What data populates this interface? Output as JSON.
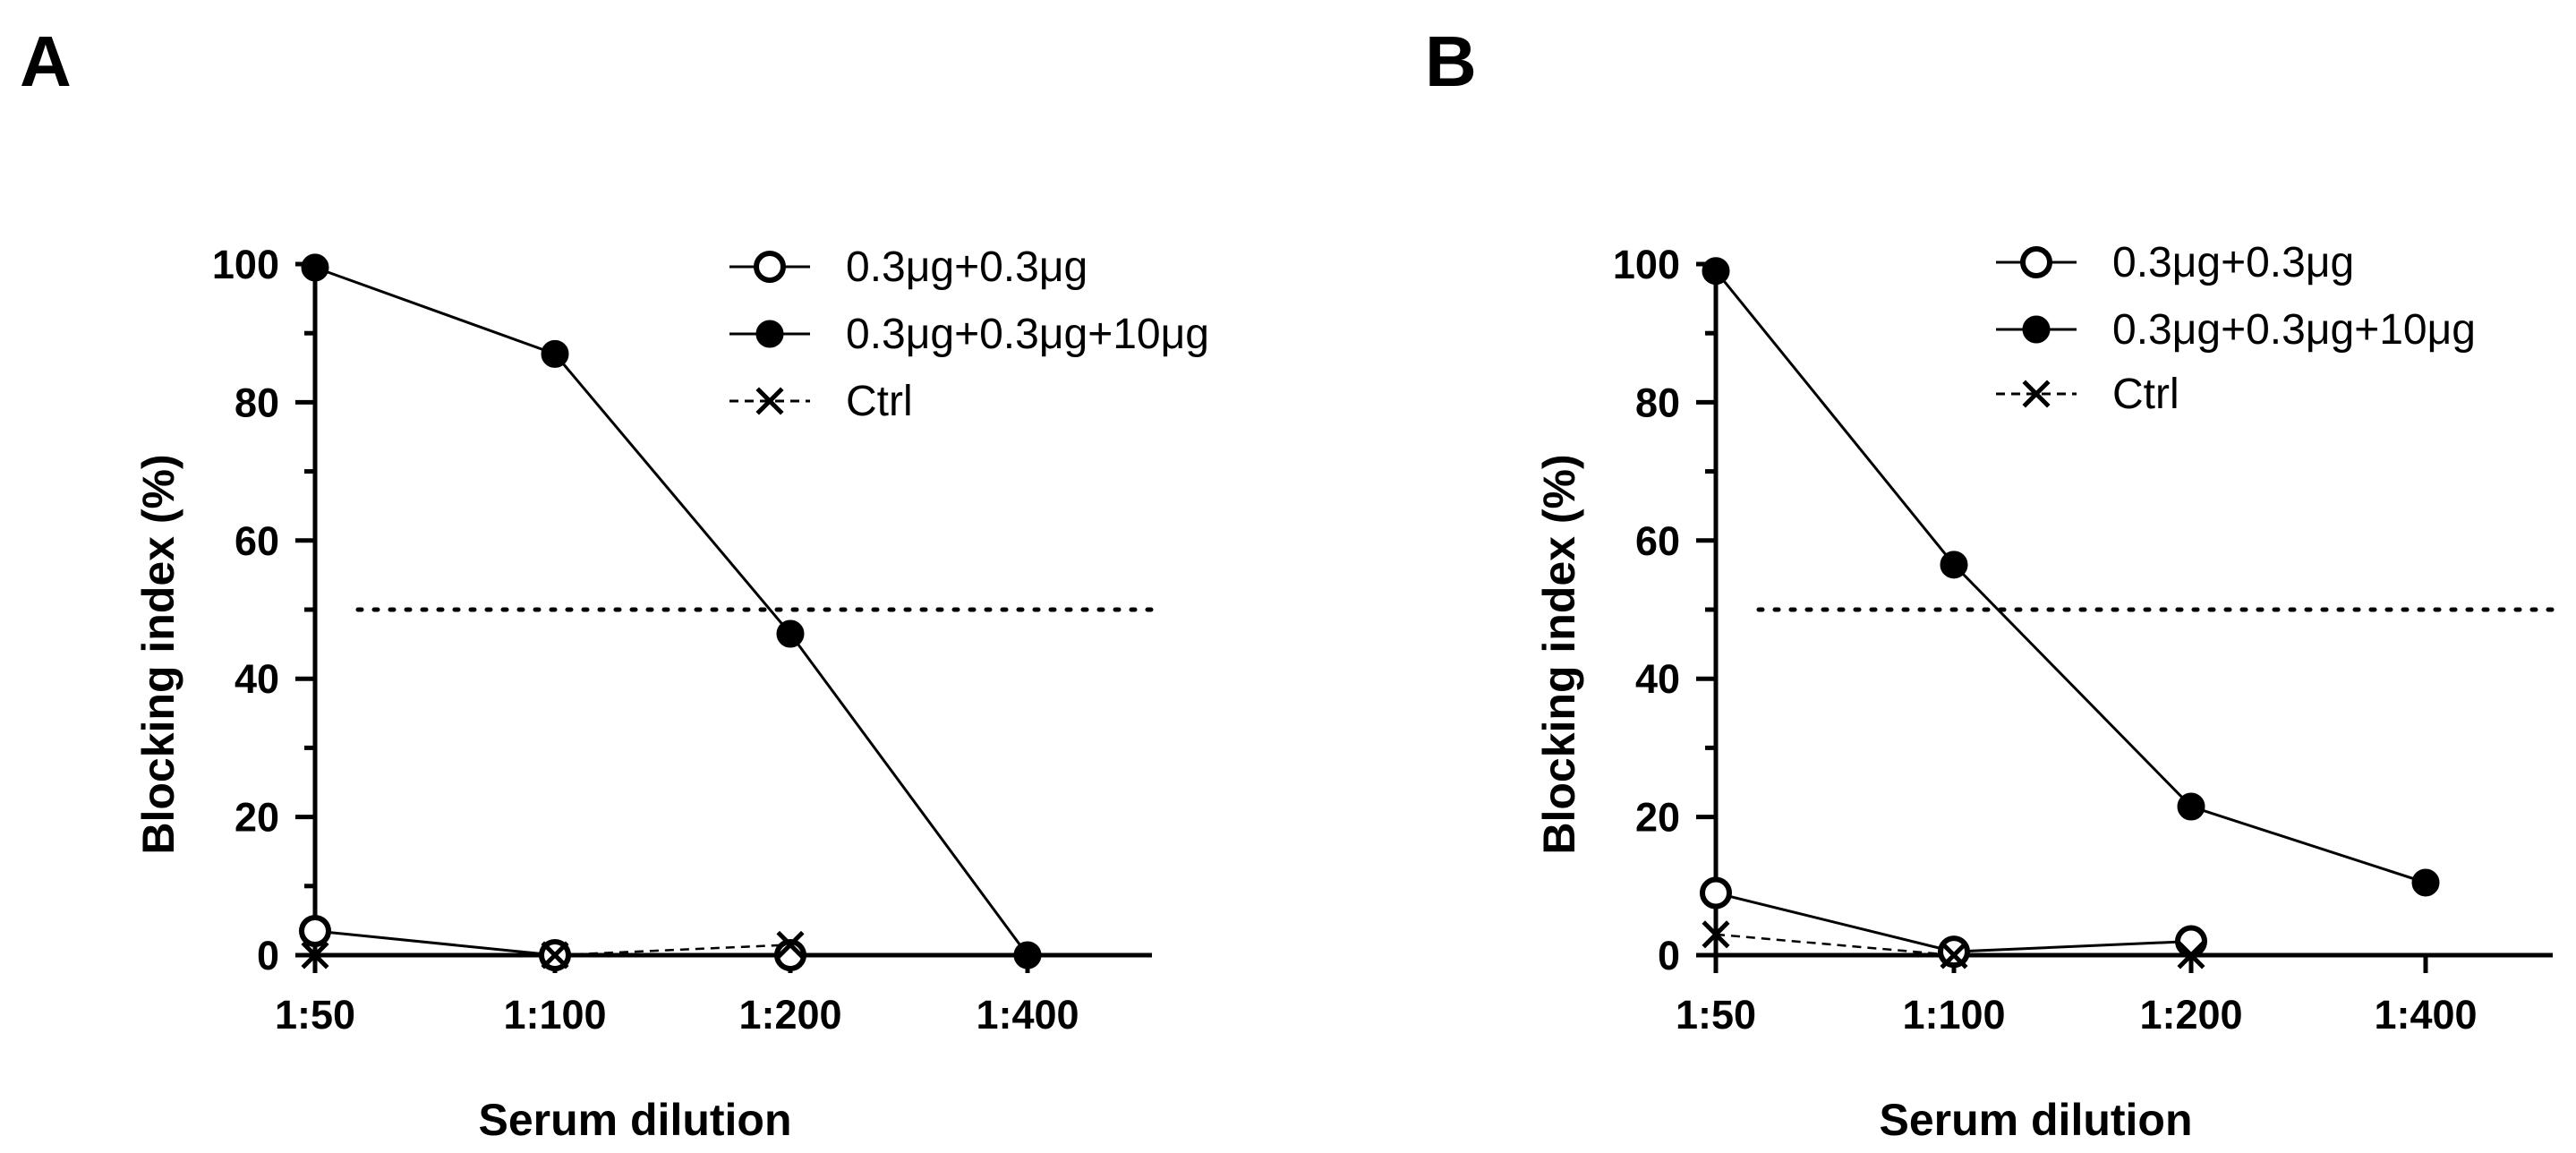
{
  "chart_data": [
    {
      "panel": "A",
      "type": "line",
      "xlabel": "Serum dilution",
      "ylabel": "Blocking index (%)",
      "categories": [
        "1:50",
        "1:100",
        "1:200",
        "1:400"
      ],
      "ylim": [
        0,
        100
      ],
      "yticks": [
        "0",
        "20",
        "40",
        "60",
        "80",
        "100"
      ],
      "reference_line": {
        "y": 50,
        "style": "dotted"
      },
      "series": [
        {
          "name": "0.3μg+0.3μg",
          "marker": "open-circle",
          "line": "solid",
          "values": [
            3.5,
            0,
            0,
            null
          ]
        },
        {
          "name": "0.3μg+0.3μg+10μg",
          "marker": "filled-circle",
          "line": "solid",
          "values": [
            99.5,
            87,
            46.5,
            0
          ]
        },
        {
          "name": "Ctrl",
          "marker": "x",
          "line": "dashed",
          "values": [
            0,
            0,
            1.5,
            null
          ]
        }
      ]
    },
    {
      "panel": "B",
      "type": "line",
      "xlabel": "Serum dilution",
      "ylabel": "Blocking index (%)",
      "categories": [
        "1:50",
        "1:100",
        "1:200",
        "1:400"
      ],
      "ylim": [
        0,
        100
      ],
      "yticks": [
        "0",
        "20",
        "40",
        "60",
        "80",
        "100"
      ],
      "reference_line": {
        "y": 50,
        "style": "dotted"
      },
      "series": [
        {
          "name": "0.3μg+0.3μg",
          "marker": "open-circle",
          "line": "solid",
          "values": [
            9,
            0.5,
            2,
            null
          ]
        },
        {
          "name": "0.3μg+0.3μg+10μg",
          "marker": "filled-circle",
          "line": "solid",
          "values": [
            99,
            56.5,
            21.5,
            10.5
          ]
        },
        {
          "name": "Ctrl",
          "marker": "x",
          "line": "dashed",
          "values": [
            3,
            0,
            0,
            null
          ]
        }
      ]
    }
  ]
}
